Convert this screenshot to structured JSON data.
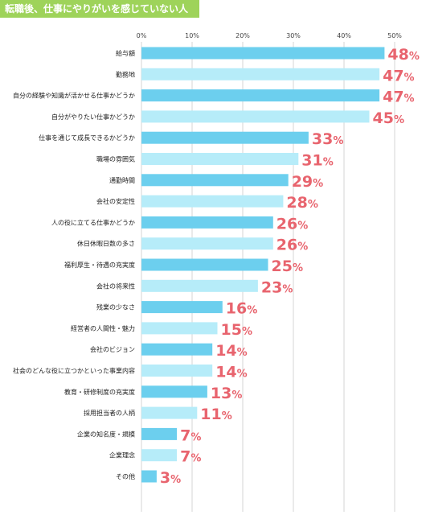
{
  "header": {
    "title": "転職後、仕事にやりがいを感じていない人"
  },
  "colors": {
    "bar_dark": "#6ccfee",
    "bar_light": "#b6ecf9",
    "value_text": "#e8646e",
    "title_bg": "#9ed35a",
    "grid": "#d4d4d4"
  },
  "chart_data": {
    "type": "bar",
    "orientation": "horizontal",
    "title": "転職後、仕事にやりがいを感じていない人",
    "xlim": [
      0,
      50
    ],
    "ticks": [
      "0%",
      "10%",
      "20%",
      "30%",
      "40%",
      "50%"
    ],
    "tick_values": [
      0,
      10,
      20,
      30,
      40,
      50
    ],
    "grid": true,
    "unit": "%",
    "categories": [
      "給与額",
      "勤務地",
      "自分の経験や知識が活かせる仕事かどうか",
      "自分がやりたい仕事かどうか",
      "仕事を通じて成長できるかどうか",
      "職場の雰囲気",
      "通勤時間",
      "会社の安定性",
      "人の役に立てる仕事かどうか",
      "休日休暇日数の多さ",
      "福利厚生・待遇の充実度",
      "会社の将来性",
      "残業の少なさ",
      "経営者の人間性・魅力",
      "会社のビジョン",
      "社会のどんな役に立つかといった事業内容",
      "教育・研修制度の充実度",
      "採用担当者の人柄",
      "企業の知名度・規模",
      "企業理念",
      "その他"
    ],
    "values": [
      48,
      47,
      47,
      45,
      33,
      31,
      29,
      28,
      26,
      26,
      25,
      23,
      16,
      15,
      14,
      14,
      13,
      11,
      7,
      7,
      3
    ]
  }
}
